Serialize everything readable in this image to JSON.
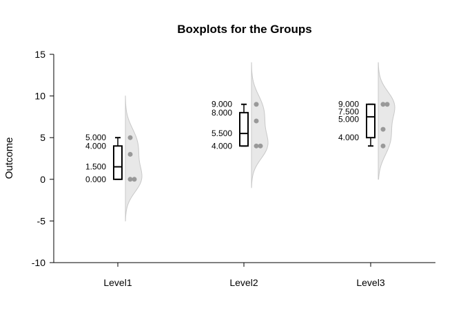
{
  "chart_data": {
    "type": "box",
    "title": "Boxplots for the Groups",
    "xlabel": "",
    "ylabel": "Outcome",
    "ylim": [
      -10,
      15
    ],
    "yticks": [
      "-10",
      "-5",
      "0",
      "5",
      "10",
      "15"
    ],
    "categories": [
      "Level1",
      "Level2",
      "Level3"
    ],
    "groups": [
      {
        "category": "Level1",
        "min": 0,
        "q1": 0,
        "median": 1.5,
        "q3": 4,
        "max": 5,
        "labels": [
          "5.000",
          "4.000",
          "1.500",
          "0.000"
        ],
        "points": [
          5,
          3,
          0,
          0
        ],
        "density_range": [
          -5,
          10
        ]
      },
      {
        "category": "Level2",
        "min": 4,
        "q1": 4,
        "median": 5.5,
        "q3": 8,
        "max": 9,
        "labels": [
          "9.000",
          "8.000",
          "5.500",
          "4.000"
        ],
        "points": [
          9,
          7,
          4,
          4
        ],
        "density_range": [
          -1,
          14
        ]
      },
      {
        "category": "Level3",
        "min": 4,
        "q1": 5,
        "median": 7.5,
        "q3": 9,
        "max": 9,
        "labels": [
          "9.000",
          "7.500",
          "5.000",
          "4.000"
        ],
        "points": [
          9,
          9,
          6,
          4
        ],
        "density_range": [
          0,
          14
        ]
      }
    ],
    "colors": {
      "box": "#000000",
      "points": "#999999",
      "density_fill": "#e8e8e8",
      "density_stroke": "#c8c8c8"
    }
  }
}
